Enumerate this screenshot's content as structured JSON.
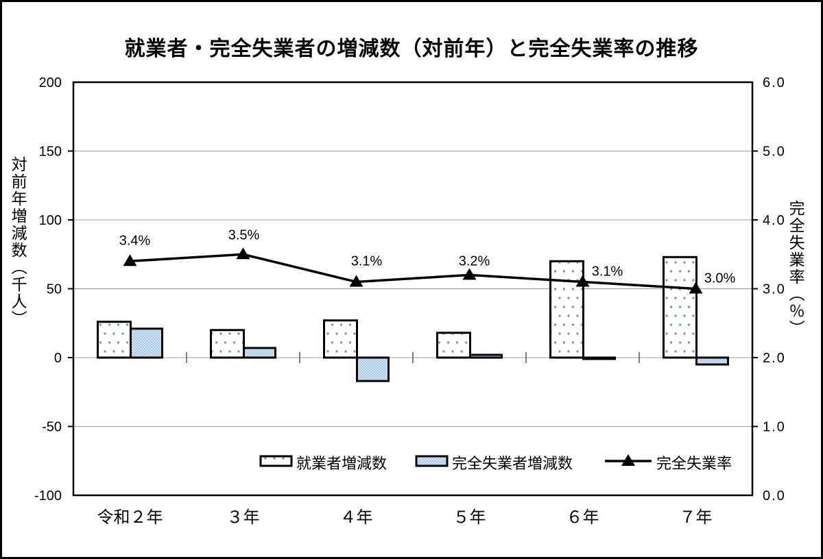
{
  "page": {
    "title": "就業者・完全失業者の増減数（対前年）と完全失業率の推移"
  },
  "colors": {
    "background": "#ffffff",
    "frame_border": "#000000",
    "plot_border": "#000000",
    "gridline": "#999999",
    "bar_border": "#000000",
    "employment_bar_fill": "#ffffff",
    "employment_bar_dot": "#8096b8",
    "unemployment_bar_fill": "#a9c7e7",
    "rate_line": "#000000"
  },
  "chart_data": {
    "type": "combo-bar-line",
    "title": "就業者・完全失業者の増減数（対前年）と完全失業率の推移",
    "categories": [
      "令和２年",
      "３年",
      "４年",
      "５年",
      "６年",
      "７年"
    ],
    "series": [
      {
        "name": "就業者増減数",
        "type": "bar",
        "axis": "left",
        "style": "white-dotted",
        "values": [
          26,
          20,
          27,
          18,
          70,
          73
        ]
      },
      {
        "name": "完全失業者増減数",
        "type": "bar",
        "axis": "left",
        "style": "blue-hatched",
        "values": [
          21,
          7,
          -17,
          2,
          -1,
          -5
        ]
      },
      {
        "name": "完全失業率",
        "type": "line",
        "axis": "right",
        "style": "black-line-triangle-markers",
        "values": [
          3.4,
          3.5,
          3.1,
          3.2,
          3.1,
          3.0
        ],
        "point_labels": [
          "3.4%",
          "3.5%",
          "3.1%",
          "3.2%",
          "3.1%",
          "3.0%"
        ],
        "label_dx": [
          7,
          1,
          15,
          7,
          36,
          35
        ],
        "label_dy": [
          -24,
          -22,
          -24,
          -14,
          -9,
          -9
        ]
      }
    ],
    "left_axis": {
      "title": "対前年増減数（千人）",
      "min": -100,
      "max": 200,
      "step": 50,
      "tick_labels": [
        "200",
        "150",
        "100",
        "50",
        "0",
        "-50",
        "-100"
      ]
    },
    "right_axis": {
      "title": "完全失業率（％）",
      "min": 0,
      "max": 6,
      "step": 1,
      "tick_labels": [
        "6.0",
        "5.0",
        "4.0",
        "3.0",
        "2.0",
        "1.0",
        "0.0"
      ]
    },
    "grid": true,
    "legend_position": "bottom-inside"
  }
}
